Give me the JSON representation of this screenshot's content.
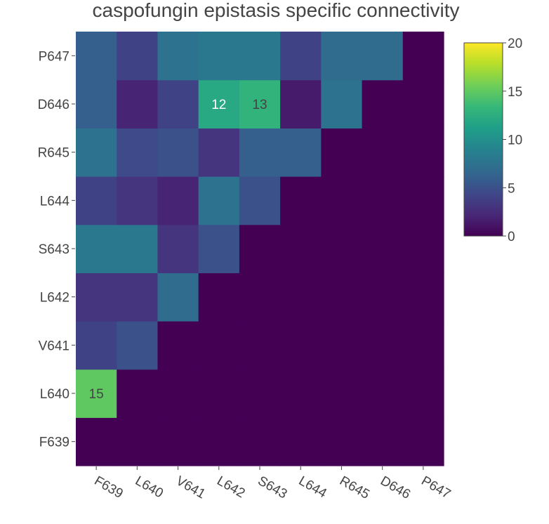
{
  "chart_data": {
    "type": "heatmap",
    "title": "caspofungin epistasis specific connectivity",
    "x_categories": [
      "F639",
      "L640",
      "V641",
      "L642",
      "S643",
      "L644",
      "R645",
      "D646",
      "P647"
    ],
    "y_categories": [
      "F639",
      "L640",
      "V641",
      "L642",
      "S643",
      "L644",
      "R645",
      "D646",
      "P647"
    ],
    "z": [
      [
        0,
        0,
        0,
        0,
        0,
        0,
        0,
        0,
        0
      ],
      [
        15,
        0,
        0,
        0,
        0,
        0,
        0,
        0,
        0
      ],
      [
        4,
        5,
        0,
        0,
        0,
        0,
        0,
        0,
        0
      ],
      [
        3,
        3,
        7,
        0,
        0,
        0,
        0,
        0,
        0
      ],
      [
        8,
        8,
        3,
        5,
        0,
        0,
        0,
        0,
        0
      ],
      [
        4,
        3,
        2,
        7.5,
        5,
        0,
        0,
        0,
        0
      ],
      [
        7.5,
        4.5,
        5,
        3,
        6,
        6,
        0,
        0,
        0
      ],
      [
        6,
        2,
        4,
        12,
        13,
        1.5,
        7.5,
        0,
        0
      ],
      [
        6,
        4,
        7.5,
        8,
        8,
        4,
        7,
        7,
        0
      ]
    ],
    "annotations": [
      {
        "x": "F639",
        "y": "L640",
        "text": "15"
      },
      {
        "x": "L642",
        "y": "D646",
        "text": "12"
      },
      {
        "x": "S643",
        "y": "D646",
        "text": "13"
      }
    ],
    "colorscale": "Viridis",
    "zmin": 0,
    "zmax": 20,
    "colorbar_ticks": [
      "0",
      "5",
      "10",
      "15",
      "20"
    ],
    "colorbar_tickvals": [
      0,
      5,
      10,
      15,
      20
    ],
    "legend_placement": "right",
    "grid": false
  }
}
